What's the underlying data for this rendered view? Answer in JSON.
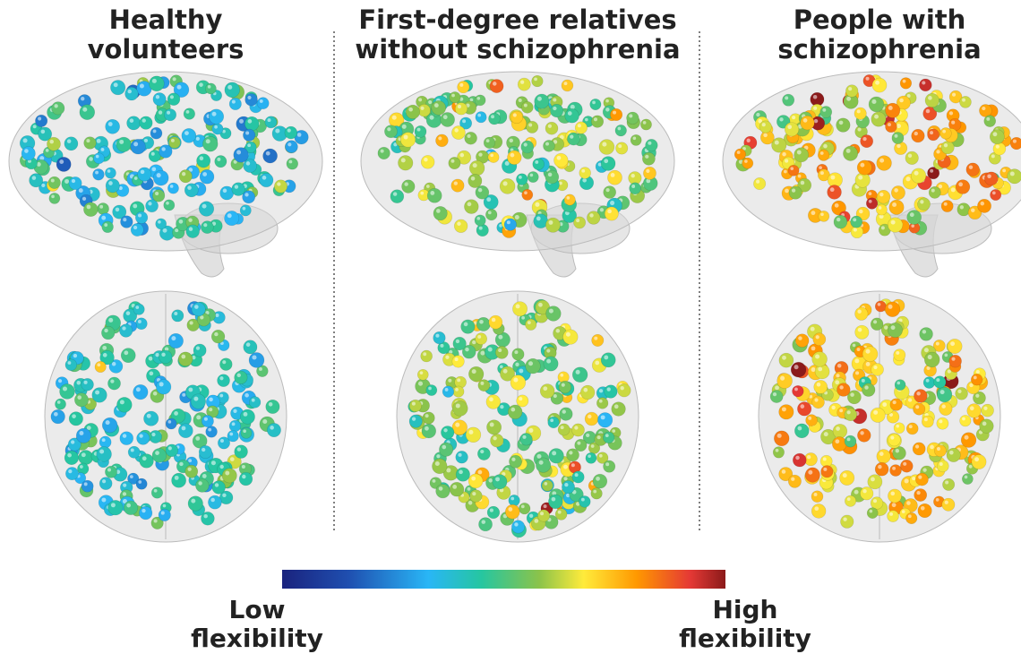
{
  "columns": [
    {
      "title_lines": [
        "Healthy",
        "volunteers"
      ]
    },
    {
      "title_lines": [
        "First-degree relatives",
        "without schizophrenia"
      ]
    },
    {
      "title_lines": [
        "People with",
        "schizophrenia"
      ]
    }
  ],
  "colorbar": {
    "low_label_lines": [
      "Low",
      "flexibility"
    ],
    "high_label_lines": [
      "High",
      "flexibility"
    ]
  }
}
